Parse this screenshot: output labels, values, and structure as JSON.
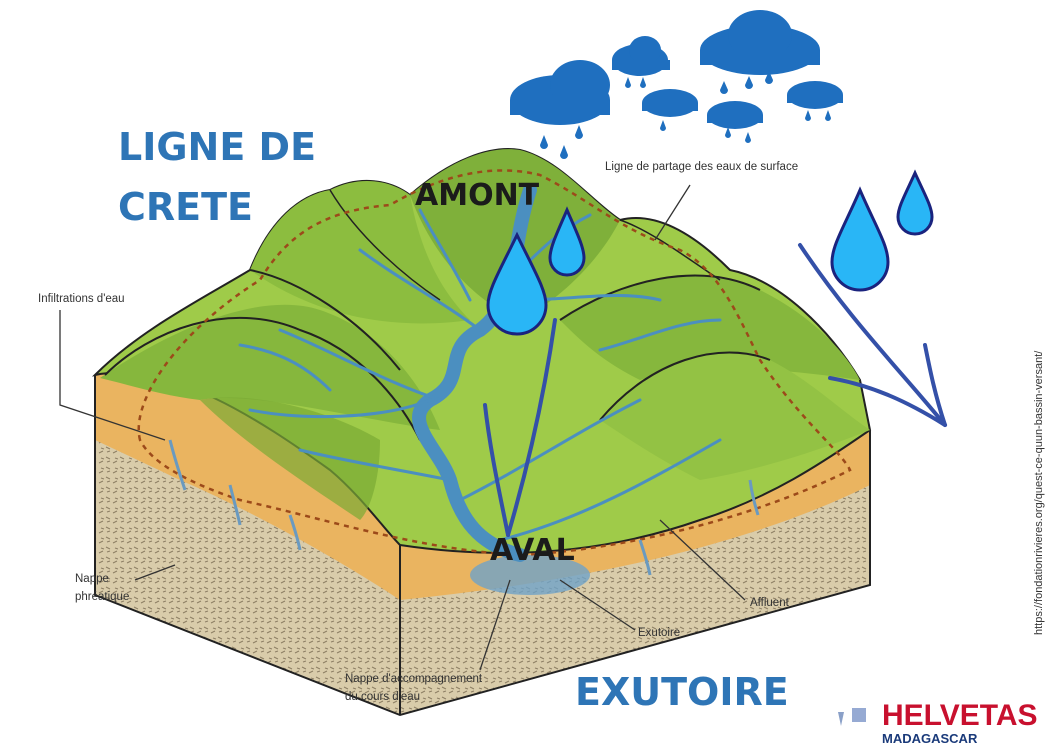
{
  "headings": {
    "ligne_de_crete": [
      "LIGNE DE",
      "CRETE"
    ],
    "amont": "AMONT",
    "aval": "AVAL",
    "exutoire": "EXUTOIRE"
  },
  "annotations": {
    "ligne_de_partage": [
      "Ligne de partage des eaux de surface"
    ],
    "infiltrations": [
      "Infiltrations d'eau"
    ],
    "nappe_phreatique": [
      "Nappe",
      "phréatique"
    ],
    "affluent": [
      "Affluent"
    ],
    "exutoire": [
      "Exutoire"
    ],
    "nappe_accompagnement": [
      "Nappe d'accompagnement",
      "du cours d'eau"
    ]
  },
  "source": "https://fondationrivieres.org/quest-ce-quun-bassin-versant/",
  "logo": {
    "name": "HELVETAS",
    "country": "MADAGASCAR"
  }
}
